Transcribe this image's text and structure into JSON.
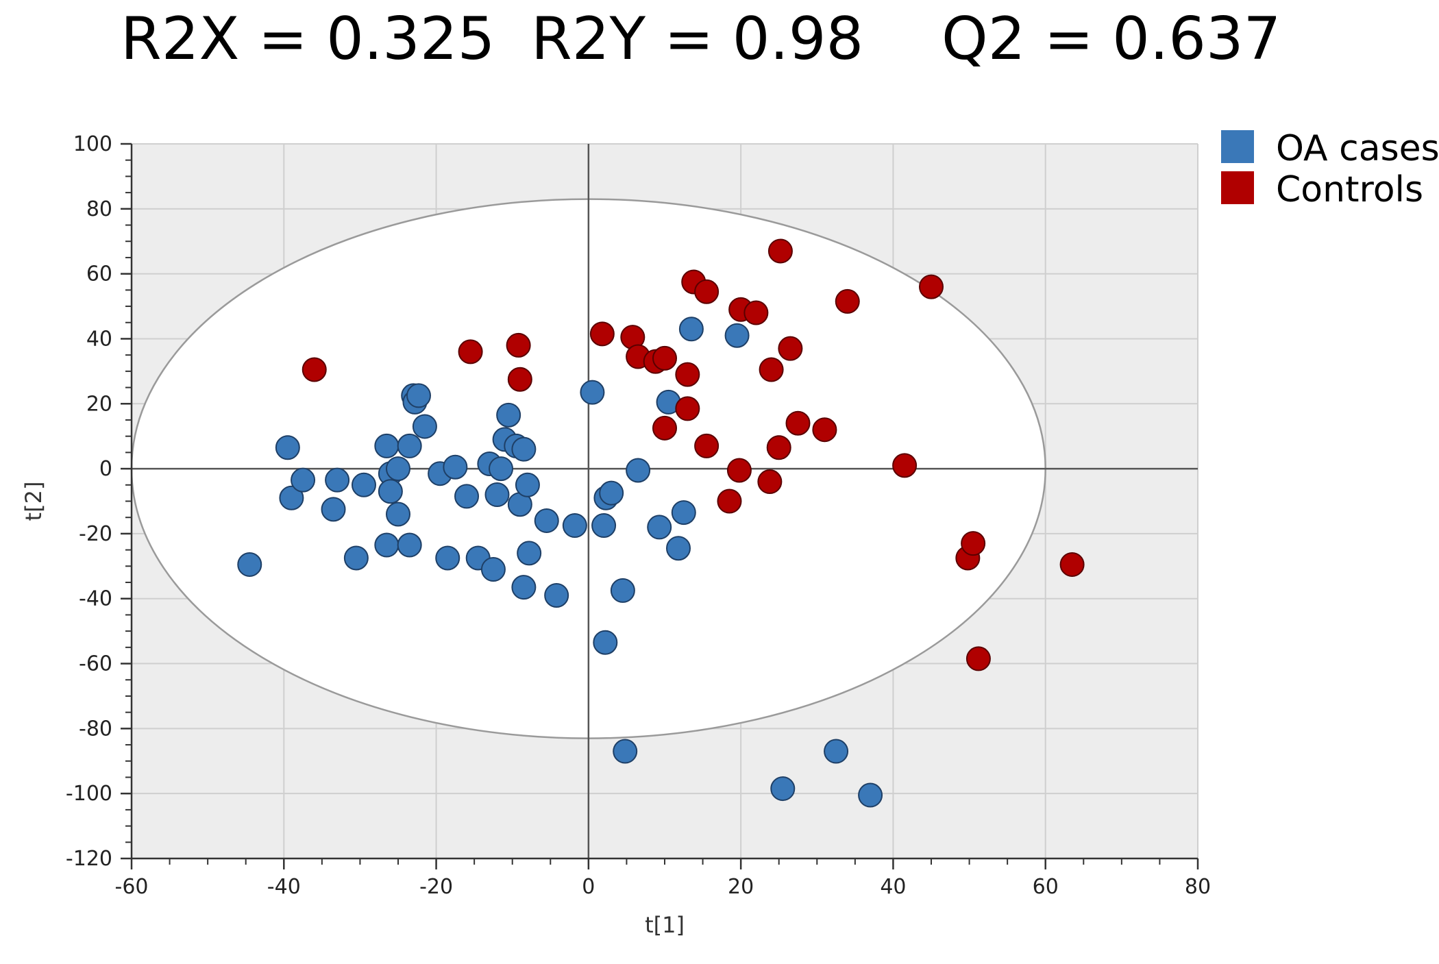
{
  "stats": {
    "r2x": "R2X = 0.325",
    "r2y": "R2Y = 0.98",
    "q2": "Q2 = 0.637"
  },
  "chart_data": {
    "type": "scatter",
    "title": "",
    "xlabel": "t[1]",
    "ylabel": "t[2]",
    "xlim": [
      -60,
      80
    ],
    "ylim": [
      -120,
      100
    ],
    "xticks": [
      -60,
      -40,
      -20,
      0,
      20,
      40,
      60,
      80
    ],
    "yticks": [
      -120,
      -100,
      -80,
      -60,
      -40,
      -20,
      0,
      20,
      40,
      60,
      80,
      100
    ],
    "grid": true,
    "legend_position": "top-right",
    "confidence_ellipse": {
      "center": [
        0,
        0
      ],
      "semi_axis_x": 60,
      "semi_axis_y": 83
    },
    "series": [
      {
        "name": "OA cases",
        "color": "#3A78B8",
        "points": [
          [
            -44.5,
            -29.5
          ],
          [
            -39.5,
            6.5
          ],
          [
            -39,
            -9
          ],
          [
            -37.5,
            -3.5
          ],
          [
            -33.5,
            -12.5
          ],
          [
            -33,
            -3.5
          ],
          [
            -30.5,
            -27.5
          ],
          [
            -29.5,
            -5
          ],
          [
            -26.5,
            7
          ],
          [
            -26.5,
            -23.5
          ],
          [
            -26,
            -1.5
          ],
          [
            -26,
            -7
          ],
          [
            -25,
            -14
          ],
          [
            -25,
            0
          ],
          [
            -23.5,
            7
          ],
          [
            -23.5,
            -23.5
          ],
          [
            -23,
            22.5
          ],
          [
            -22.8,
            20.5
          ],
          [
            -22.3,
            22.5
          ],
          [
            -21.5,
            13
          ],
          [
            -19.5,
            -1.5
          ],
          [
            -18.5,
            -27.5
          ],
          [
            -17.5,
            0.5
          ],
          [
            -16,
            -8.5
          ],
          [
            -14.5,
            -27.5
          ],
          [
            -13,
            1.5
          ],
          [
            -12.5,
            -31
          ],
          [
            -12,
            -8
          ],
          [
            -11.5,
            0
          ],
          [
            -11,
            9
          ],
          [
            -10.5,
            16.5
          ],
          [
            -9.5,
            7
          ],
          [
            -9,
            -11
          ],
          [
            -8.5,
            6
          ],
          [
            -8.5,
            -36.5
          ],
          [
            -8,
            -5
          ],
          [
            -7.8,
            -26
          ],
          [
            -5.5,
            -16
          ],
          [
            -4.2,
            -39
          ],
          [
            -1.8,
            -17.5
          ],
          [
            0.5,
            23.5
          ],
          [
            2,
            -17.5
          ],
          [
            2.3,
            -9
          ],
          [
            2.2,
            -53.5
          ],
          [
            3,
            -7.5
          ],
          [
            4.5,
            -37.5
          ],
          [
            4.8,
            -87
          ],
          [
            6.5,
            -0.5
          ],
          [
            9.3,
            -18
          ],
          [
            10.5,
            20.5
          ],
          [
            11.8,
            -24.5
          ],
          [
            12.5,
            -13.5
          ],
          [
            13.5,
            43
          ],
          [
            19.5,
            41
          ],
          [
            25.5,
            -98.5
          ],
          [
            32.5,
            -87
          ],
          [
            37,
            -100.5
          ]
        ]
      },
      {
        "name": "Controls",
        "color": "#B00000",
        "points": [
          [
            -36,
            30.5
          ],
          [
            -15.5,
            36
          ],
          [
            -9.2,
            38
          ],
          [
            -9,
            27.5
          ],
          [
            1.8,
            41.5
          ],
          [
            5.8,
            40.5
          ],
          [
            6.5,
            34.5
          ],
          [
            8.8,
            33
          ],
          [
            10,
            34
          ],
          [
            10,
            12.5
          ],
          [
            13,
            29
          ],
          [
            13,
            18.5
          ],
          [
            13.8,
            57.5
          ],
          [
            15.5,
            54.5
          ],
          [
            15.5,
            7
          ],
          [
            18.5,
            -10
          ],
          [
            19.8,
            -0.5
          ],
          [
            20,
            49
          ],
          [
            22,
            48
          ],
          [
            23.8,
            -4
          ],
          [
            24,
            30.5
          ],
          [
            25,
            6.5
          ],
          [
            25.2,
            67
          ],
          [
            26.5,
            37
          ],
          [
            27.5,
            14
          ],
          [
            31,
            12
          ],
          [
            34,
            51.5
          ],
          [
            41.5,
            1
          ],
          [
            45,
            56
          ],
          [
            49.8,
            -27.5
          ],
          [
            50.5,
            -23
          ],
          [
            51.2,
            -58.5
          ],
          [
            63.5,
            -29.5
          ]
        ]
      }
    ]
  }
}
